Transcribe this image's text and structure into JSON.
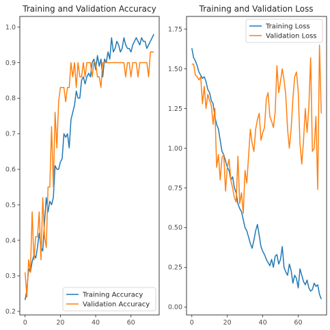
{
  "colors": {
    "training": "#1f77b4",
    "validation": "#ff7f0e",
    "axes": "#262626",
    "tick_text": "#4d4d4d",
    "legend_border": "#cccccc"
  },
  "chart_data": [
    {
      "type": "line",
      "title": "Training and Validation Accuracy",
      "xlabel": "",
      "ylabel": "",
      "xlim": [
        -3,
        76
      ],
      "ylim": [
        0.19,
        1.03
      ],
      "xticks": [
        0,
        20,
        40,
        60
      ],
      "yticks": [
        0.2,
        0.3,
        0.4,
        0.5,
        0.6,
        0.7,
        0.8,
        0.9,
        1.0
      ],
      "ytick_labels": [
        "0.2",
        "0.3",
        "0.4",
        "0.5",
        "0.6",
        "0.7",
        "0.8",
        "0.9",
        "1.0"
      ],
      "grid": false,
      "legend_position": "lower-right",
      "series": [
        {
          "name": "Training Accuracy",
          "color_key": "training",
          "values": [
            0.232,
            0.26,
            0.32,
            0.31,
            0.34,
            0.36,
            0.35,
            0.38,
            0.42,
            0.38,
            0.37,
            0.45,
            0.52,
            0.48,
            0.51,
            0.5,
            0.52,
            0.61,
            0.6,
            0.6,
            0.62,
            0.63,
            0.7,
            0.69,
            0.7,
            0.66,
            0.74,
            0.76,
            0.78,
            0.82,
            0.8,
            0.8,
            0.85,
            0.86,
            0.84,
            0.86,
            0.87,
            0.86,
            0.9,
            0.91,
            0.88,
            0.92,
            0.89,
            0.91,
            0.86,
            0.91,
            0.9,
            0.93,
            0.91,
            0.97,
            0.93,
            0.94,
            0.96,
            0.95,
            0.93,
            0.94,
            0.97,
            0.95,
            0.94,
            0.94,
            0.93,
            0.95,
            0.96,
            0.97,
            0.96,
            0.95,
            0.97,
            0.96,
            0.96,
            0.94,
            0.95,
            0.96,
            0.97,
            0.98
          ]
        },
        {
          "name": "Validation Accuracy",
          "color_key": "validation",
          "values": [
            0.31,
            0.24,
            0.345,
            0.31,
            0.48,
            0.345,
            0.41,
            0.41,
            0.48,
            0.345,
            0.52,
            0.41,
            0.38,
            0.55,
            0.55,
            0.72,
            0.55,
            0.76,
            0.66,
            0.79,
            0.83,
            0.83,
            0.83,
            0.79,
            0.83,
            0.83,
            0.9,
            0.86,
            0.9,
            0.83,
            0.9,
            0.86,
            0.86,
            0.9,
            0.86,
            0.9,
            0.9,
            0.9,
            0.86,
            0.9,
            0.9,
            0.86,
            0.86,
            0.83,
            0.9,
            0.9,
            0.9,
            0.9,
            0.9,
            0.9,
            0.9,
            0.9,
            0.9,
            0.9,
            0.9,
            0.9,
            0.9,
            0.86,
            0.9,
            0.9,
            0.86,
            0.9,
            0.9,
            0.9,
            0.86,
            0.9,
            0.9,
            0.9,
            0.9,
            0.9,
            0.86,
            0.93,
            0.93,
            0.93
          ]
        }
      ]
    },
    {
      "type": "line",
      "title": "Training and Validation Loss",
      "xlabel": "",
      "ylabel": "",
      "xlim": [
        -3,
        76
      ],
      "ylim": [
        -0.05,
        1.83
      ],
      "xticks": [
        0,
        20,
        40,
        60
      ],
      "yticks": [
        0.0,
        0.25,
        0.5,
        0.75,
        1.0,
        1.25,
        1.5,
        1.75
      ],
      "ytick_labels": [
        "0.00",
        "0.25",
        "0.50",
        "0.75",
        "1.00",
        "1.25",
        "1.50",
        "1.75"
      ],
      "grid": false,
      "legend_position": "upper-right",
      "series": [
        {
          "name": "Training Loss",
          "color_key": "training",
          "values": [
            1.63,
            1.57,
            1.55,
            1.52,
            1.48,
            1.46,
            1.44,
            1.45,
            1.42,
            1.37,
            1.35,
            1.3,
            1.28,
            1.2,
            1.15,
            1.12,
            1.05,
            0.98,
            0.96,
            0.92,
            0.88,
            0.86,
            0.8,
            0.82,
            0.75,
            0.72,
            0.65,
            0.62,
            0.6,
            0.55,
            0.5,
            0.48,
            0.44,
            0.4,
            0.37,
            0.42,
            0.48,
            0.52,
            0.45,
            0.38,
            0.35,
            0.33,
            0.3,
            0.28,
            0.26,
            0.3,
            0.25,
            0.32,
            0.33,
            0.27,
            0.3,
            0.38,
            0.25,
            0.22,
            0.2,
            0.27,
            0.23,
            0.15,
            0.2,
            0.18,
            0.12,
            0.24,
            0.2,
            0.16,
            0.14,
            0.17,
            0.12,
            0.1,
            0.11,
            0.15,
            0.13,
            0.14,
            0.08,
            0.05
          ]
        },
        {
          "name": "Validation Loss",
          "color_key": "validation",
          "values": [
            1.53,
            1.53,
            1.46,
            1.45,
            1.43,
            1.45,
            1.28,
            1.39,
            1.25,
            1.34,
            1.3,
            1.27,
            1.15,
            1.25,
            0.88,
            0.96,
            0.8,
            0.94,
            0.96,
            0.73,
            0.88,
            0.93,
            0.8,
            0.75,
            0.69,
            0.66,
            0.95,
            0.65,
            0.72,
            0.59,
            0.86,
            0.78,
            0.95,
            1.12,
            1.03,
            0.98,
            1.12,
            1.18,
            1.22,
            1.05,
            1.1,
            1.13,
            1.31,
            1.35,
            1.2,
            1.17,
            1.13,
            1.23,
            1.52,
            1.35,
            1.42,
            1.5,
            1.43,
            1.33,
            1.12,
            1.0,
            1.12,
            1.31,
            1.45,
            1.48,
            1.36,
            1.03,
            0.9,
            1.05,
            1.25,
            1.1,
            1.26,
            1.57,
            0.98,
            1.0,
            1.2,
            0.74,
            1.65,
            1.22
          ]
        }
      ]
    }
  ]
}
